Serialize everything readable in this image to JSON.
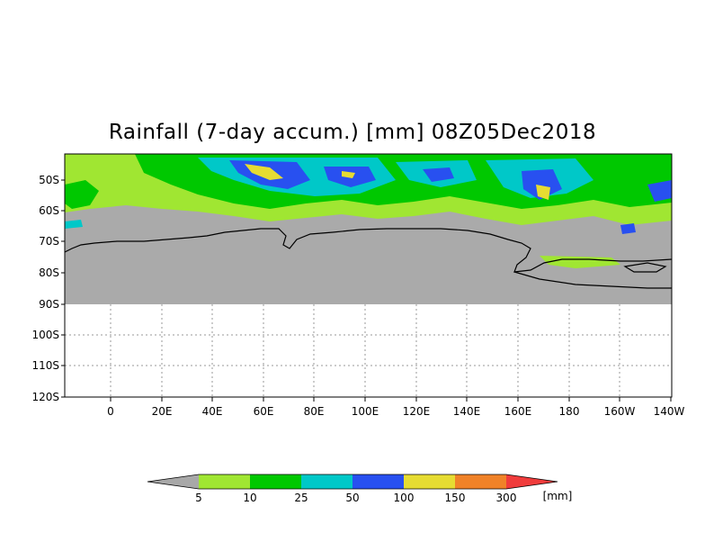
{
  "title": "Rainfall (7-day accum.) [mm] 08Z05Dec2018",
  "y_labels": [
    "50S",
    "60S",
    "70S",
    "80S",
    "90S",
    "100S",
    "110S",
    "120S"
  ],
  "x_labels": [
    "0",
    "20E",
    "40E",
    "60E",
    "80E",
    "100E",
    "120E",
    "140E",
    "160E",
    "180",
    "160W",
    "140W"
  ],
  "legend": {
    "thresholds": [
      "5",
      "10",
      "25",
      "50",
      "100",
      "150",
      "300"
    ],
    "unit": "[mm]",
    "colors": [
      "#a8a8a8",
      "#a0e632",
      "#00c800",
      "#00c8c8",
      "#2850f0",
      "#e6dc32",
      "#f08228",
      "#f03c3c"
    ]
  },
  "colors": {
    "no_data_gray": "#aaaaaa",
    "coastline": "#000000",
    "grid": "#999999"
  }
}
